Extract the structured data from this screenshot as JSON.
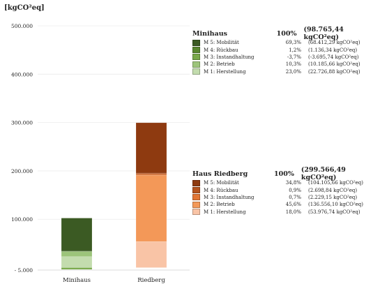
{
  "chart_data": {
    "type": "bar",
    "stacked": true,
    "title": "",
    "ylabel": "[kgCO²eq]",
    "xlabel": "",
    "ylim": [
      -5000,
      500000
    ],
    "yticks": [
      -5000,
      100000,
      200000,
      300000,
      400000,
      500000
    ],
    "ytick_labels": [
      "- 5.000",
      "100.000",
      "200.000",
      "300.000",
      "400.000",
      "500.000"
    ],
    "categories": [
      "Minihaus",
      "Riedberg"
    ],
    "grid": true,
    "legend_placement": "right",
    "groups": [
      {
        "name": "Minihaus",
        "percent_total": "100%",
        "total_label": "(98.765,44 kgCO²eq)",
        "total": 98765.44,
        "series": [
          {
            "name": "M 5: Mobilität",
            "percent": "69,3%",
            "value_label": "(68.412,29 kgCO²eq)",
            "value": 68412.29,
            "color": "#3b5a23"
          },
          {
            "name": "M 4: Rückbau",
            "percent": "1,2%",
            "value_label": "(1.136,34 kgCO²eq)",
            "value": 1136.34,
            "color": "#58862e"
          },
          {
            "name": "M 3: Instandhaltung",
            "percent": "-3,7%",
            "value_label": "(-3.695,74 kgCO²eq)",
            "value": -3695.74,
            "color": "#79a94a"
          },
          {
            "name": "M 2: Betrieb",
            "percent": "10,3%",
            "value_label": "(10.185,66 kgCO²eq)",
            "value": 10185.66,
            "color": "#9cc47a"
          },
          {
            "name": "M 1: Herstellung",
            "percent": "23,0%",
            "value_label": "(22.726,88 kgCO²eq)",
            "value": 22726.88,
            "color": "#c3dcae"
          }
        ]
      },
      {
        "name": "Haus Riedberg",
        "percent_total": "100%",
        "total_label": "(299.566,49 kgCO²eq)",
        "total": 299566.49,
        "series": [
          {
            "name": "M 5: Mobilität",
            "percent": "34,8%",
            "value_label": "(104.105,66 kgCO²eq)",
            "value": 104105.66,
            "color": "#8e3a10"
          },
          {
            "name": "M 4: Rückbau",
            "percent": "0,9%",
            "value_label": "(2.698,84 kgCO²eq)",
            "value": 2698.84,
            "color": "#b5531d"
          },
          {
            "name": "M 3: Instandhaltung",
            "percent": "0,7%",
            "value_label": "(2.229,15 kgCO²eq)",
            "value": 2229.15,
            "color": "#e27634"
          },
          {
            "name": "M 2: Betrieb",
            "percent": "45,6%",
            "value_label": "(136.556,10 kgCO²eq)",
            "value": 136556.1,
            "color": "#f39858"
          },
          {
            "name": "M 1: Herstellung",
            "percent": "18,0%",
            "value_label": "(53.976,74 kgCO²eq)",
            "value": 53976.74,
            "color": "#f9c4a6"
          }
        ]
      }
    ]
  }
}
